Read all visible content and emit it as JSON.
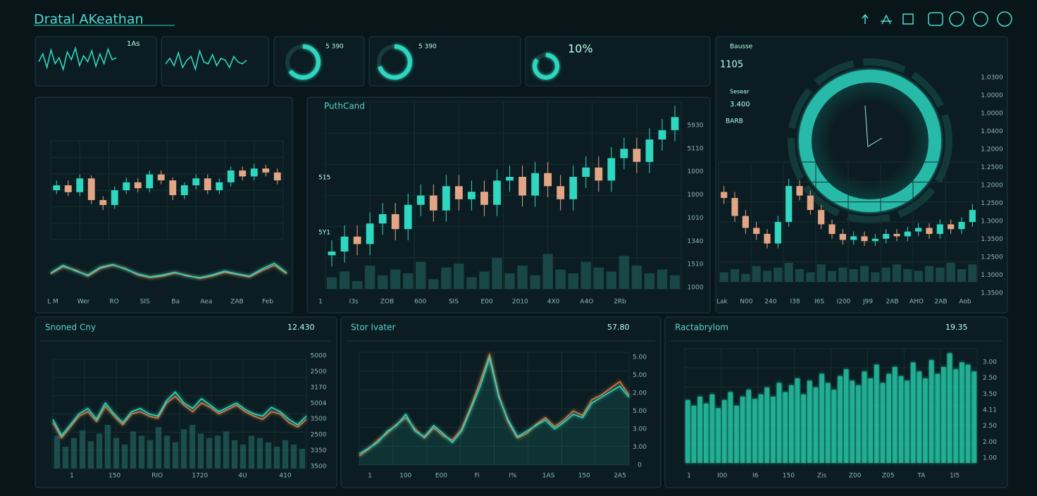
{
  "header": {
    "title": "Dratal AKeathan"
  },
  "chart_data": [
    {
      "type": "line",
      "ylim": [
        0,
        100
      ],
      "texts": [
        "1As"
      ],
      "series": [
        {
          "color": "#2fd6c0",
          "values": [
            50,
            70,
            35,
            80,
            45,
            60,
            30,
            75,
            55,
            85,
            40,
            65,
            50,
            78,
            38,
            70,
            45,
            82,
            55,
            60
          ]
        }
      ]
    },
    {
      "type": "line",
      "ylim": [
        0,
        100
      ],
      "series": [
        {
          "color": "#2fd6c0",
          "values": [
            45,
            60,
            40,
            75,
            35,
            55,
            65,
            30,
            80,
            50,
            45,
            70,
            40,
            60,
            55,
            35,
            65,
            50,
            45,
            55
          ]
        }
      ]
    },
    {
      "type": "gauge",
      "value": 65,
      "color": "#2fd6c0",
      "texts": [
        "5 390"
      ]
    },
    {
      "type": "gauge",
      "value": 70,
      "color": "#2fd6c0",
      "texts": [
        "5 390"
      ]
    },
    {
      "type": "gauge",
      "value": 85,
      "color": "#2fd6c0",
      "texts": [
        "10%"
      ]
    },
    {
      "type": "candlestick",
      "ylim": [
        0,
        100
      ],
      "up_color": "#2fd6c0",
      "down_color": "#e2a586",
      "xlabels": [
        "L M",
        "Wer",
        "RO",
        "SIS",
        "Ba",
        "Aea",
        "ZAB",
        "Feb"
      ],
      "open": [
        50,
        55,
        48,
        62,
        40,
        35,
        50,
        58,
        52,
        66,
        60,
        45,
        55,
        62,
        50,
        58,
        70,
        64,
        72,
        68
      ],
      "high": [
        60,
        60,
        66,
        65,
        44,
        54,
        63,
        62,
        70,
        70,
        63,
        58,
        66,
        66,
        62,
        74,
        74,
        77,
        76,
        72
      ],
      "low": [
        46,
        44,
        44,
        36,
        30,
        31,
        46,
        48,
        48,
        56,
        40,
        41,
        51,
        46,
        46,
        54,
        60,
        60,
        64,
        56
      ],
      "close": [
        55,
        48,
        62,
        40,
        35,
        50,
        58,
        52,
        66,
        60,
        45,
        55,
        62,
        50,
        58,
        70,
        64,
        72,
        68,
        60
      ]
    },
    {
      "type": "line",
      "ylim": [
        0,
        100
      ],
      "series": [
        {
          "color": "#e0743a",
          "values": [
            48,
            66,
            58,
            42,
            62,
            70,
            62,
            45,
            38,
            42,
            50,
            44,
            36,
            42,
            52,
            46,
            40,
            56,
            70,
            48
          ]
        },
        {
          "color": "#2fd6c0",
          "values": [
            50,
            70,
            55,
            45,
            65,
            72,
            60,
            48,
            40,
            45,
            52,
            42,
            38,
            45,
            55,
            48,
            42,
            60,
            75,
            50
          ]
        }
      ]
    },
    {
      "type": "candlestick",
      "ylim": [
        0,
        100
      ],
      "vlim": [
        0,
        100
      ],
      "up_color": "#2fd6c0",
      "down_color": "#e2a586",
      "title": "PuthCand",
      "texts": [
        "515",
        "5Y1"
      ],
      "ylabels": [
        "5930",
        "5110",
        "1000",
        "1000",
        "1010",
        "1340",
        "1510",
        "1000"
      ],
      "xlabels": [
        "1",
        "I3s",
        "ZOB",
        "600",
        "SIS",
        "E00",
        "2010",
        "4X0",
        "A4O",
        "2Rb"
      ],
      "open": [
        18,
        20,
        28,
        24,
        35,
        40,
        32,
        45,
        50,
        42,
        55,
        48,
        52,
        45,
        58,
        60,
        50,
        62,
        55,
        48,
        60,
        65,
        58,
        70,
        75,
        68,
        80,
        85
      ],
      "high": [
        26,
        34,
        34,
        41,
        46,
        46,
        51,
        56,
        56,
        61,
        61,
        58,
        58,
        64,
        66,
        66,
        68,
        68,
        61,
        66,
        71,
        71,
        76,
        81,
        81,
        86,
        91,
        98
      ],
      "low": [
        12,
        14,
        18,
        18,
        29,
        26,
        26,
        39,
        36,
        36,
        42,
        42,
        39,
        39,
        52,
        44,
        44,
        49,
        42,
        42,
        54,
        52,
        52,
        64,
        62,
        62,
        74,
        79
      ],
      "close": [
        20,
        28,
        24,
        35,
        40,
        32,
        45,
        50,
        42,
        55,
        48,
        52,
        45,
        58,
        60,
        50,
        62,
        55,
        48,
        60,
        65,
        58,
        70,
        75,
        68,
        80,
        85,
        92
      ],
      "volume": [
        30,
        45,
        20,
        60,
        35,
        50,
        40,
        70,
        25,
        55,
        65,
        30,
        45,
        80,
        40,
        60,
        35,
        90,
        50,
        40,
        70,
        55,
        45,
        85,
        60,
        40,
        50,
        35
      ]
    },
    {
      "type": "candlestick",
      "ylim": [
        0,
        100
      ],
      "vlim": [
        0,
        100
      ],
      "up_color": "#2fd6c0",
      "down_color": "#e2a586",
      "texts": [
        "Bausse",
        "1105",
        "Sesear",
        "3.400",
        "BARB"
      ],
      "ylabels": [
        "1.0300",
        "1.0000",
        "1.0000",
        "1.0400",
        "1.2000",
        "1.2500",
        "1.2000",
        "1.2500",
        "1.3000",
        "1.3500",
        "1.2500",
        "1.3000",
        "1.3500"
      ],
      "xlabels": [
        "Lak",
        "N00",
        "240",
        "I38",
        "I6S",
        "I200",
        "J99",
        "2AB",
        "AHO",
        "2AB",
        "Aob"
      ],
      "open": [
        75,
        70,
        55,
        45,
        40,
        32,
        50,
        80,
        72,
        60,
        48,
        40,
        35,
        38,
        34,
        36,
        40,
        38,
        42,
        45,
        40,
        48,
        44,
        50
      ],
      "high": [
        80,
        75,
        60,
        50,
        44,
        55,
        86,
        85,
        76,
        64,
        52,
        44,
        42,
        42,
        40,
        44,
        44,
        46,
        49,
        49,
        52,
        52,
        54,
        65
      ],
      "low": [
        65,
        50,
        40,
        35,
        28,
        28,
        46,
        68,
        56,
        44,
        36,
        31,
        31,
        30,
        30,
        32,
        34,
        34,
        38,
        36,
        36,
        40,
        40,
        46
      ],
      "close": [
        70,
        55,
        45,
        40,
        32,
        50,
        80,
        72,
        60,
        48,
        40,
        35,
        38,
        34,
        36,
        40,
        38,
        42,
        45,
        40,
        48,
        44,
        50,
        60
      ],
      "volume": [
        30,
        40,
        25,
        50,
        35,
        45,
        60,
        40,
        30,
        55,
        35,
        45,
        40,
        50,
        30,
        45,
        55,
        40,
        35,
        50,
        45,
        60,
        40,
        55
      ]
    },
    {
      "type": "line",
      "ylim": [
        0,
        100
      ],
      "title": "Snoned Cny",
      "texts": [
        "12.430"
      ],
      "ylabels": [
        "5000",
        "2500",
        "3170",
        "5004",
        "3500",
        "2500",
        "3350",
        "3500"
      ],
      "xlabels": [
        "1",
        "150",
        "RIO",
        "1720",
        "4U",
        "410"
      ],
      "bars": [
        30,
        20,
        28,
        35,
        25,
        32,
        40,
        28,
        22,
        34,
        30,
        26,
        38,
        30,
        24,
        36,
        40,
        32,
        28,
        30,
        34,
        26,
        22,
        30,
        28,
        24,
        20,
        26,
        22,
        18
      ],
      "series": [
        {
          "color": "#e0743a",
          "values": [
            42,
            28,
            38,
            48,
            52,
            43,
            57,
            48,
            40,
            50,
            52,
            48,
            46,
            60,
            66,
            58,
            52,
            60,
            56,
            50,
            54,
            58,
            52,
            48,
            45,
            52,
            50,
            42,
            38,
            45
          ]
        },
        {
          "color": "#2fd6c0",
          "values": [
            45,
            30,
            40,
            50,
            55,
            45,
            60,
            50,
            42,
            52,
            55,
            50,
            48,
            62,
            70,
            60,
            55,
            64,
            58,
            52,
            56,
            60,
            54,
            50,
            48,
            56,
            52,
            45,
            40,
            48
          ]
        }
      ]
    },
    {
      "type": "line",
      "ylim": [
        0,
        100
      ],
      "title": "Stor Ivater",
      "texts": [
        "57.80"
      ],
      "ylabels": [
        "5.00",
        "5.00",
        "2.00",
        "5.00",
        "3.00",
        "3.00",
        "0"
      ],
      "xlabels": [
        "1",
        "100",
        "E00",
        "Fi",
        "I%",
        "1AS",
        "150",
        "2A5"
      ],
      "series": [
        {
          "color": "#e0743a",
          "values": [
            8,
            14,
            22,
            28,
            36,
            42,
            32,
            24,
            33,
            26,
            22,
            32,
            52,
            74,
            98,
            62,
            38,
            24,
            28,
            36,
            42,
            34,
            40,
            48,
            44,
            58,
            62,
            68,
            74,
            62
          ]
        },
        {
          "color": "#2fd6c0",
          "values": [
            10,
            15,
            20,
            30,
            35,
            45,
            30,
            25,
            35,
            28,
            20,
            30,
            50,
            70,
            95,
            60,
            40,
            25,
            30,
            35,
            40,
            32,
            38,
            45,
            42,
            55,
            60,
            65,
            70,
            60
          ]
        }
      ]
    },
    {
      "type": "bar",
      "ylim": [
        0,
        100
      ],
      "color": "#27c9a8",
      "title": "Ractabrylom",
      "texts": [
        "19.35"
      ],
      "ylabels": [
        "3.00",
        "2.50",
        "3.50",
        "4.11",
        "2.50",
        "2.00",
        "1.00"
      ],
      "xlabels": [
        "1",
        "I00",
        "I6",
        "150",
        "Zis",
        "Z00",
        "Z05",
        "TA",
        "1I5"
      ],
      "values": [
        55,
        50,
        58,
        52,
        60,
        48,
        55,
        62,
        50,
        58,
        64,
        56,
        60,
        66,
        58,
        70,
        62,
        68,
        74,
        60,
        72,
        66,
        78,
        70,
        64,
        76,
        82,
        72,
        68,
        80,
        74,
        86,
        70,
        78,
        84,
        76,
        72,
        88,
        80,
        74,
        90,
        78,
        84,
        96,
        82,
        88,
        86,
        80
      ]
    }
  ]
}
